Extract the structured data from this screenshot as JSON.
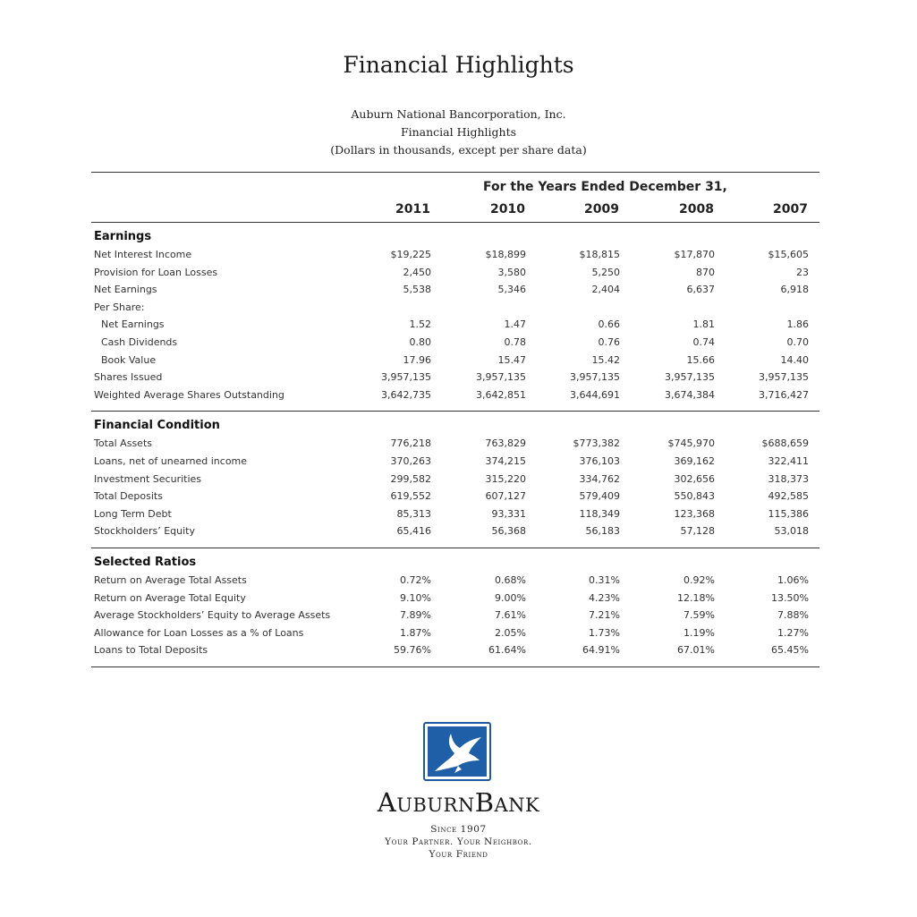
{
  "title": "Financial Highlights",
  "subheader": {
    "company": "Auburn National Bancorporation, Inc.",
    "report": "Financial Highlights",
    "units": "(Dollars in thousands, except per share data)"
  },
  "table": {
    "period_heading": "For the Years Ended December 31,",
    "years": [
      "2011",
      "2010",
      "2009",
      "2008",
      "2007"
    ],
    "sections": [
      {
        "title": "Earnings",
        "rows": [
          {
            "label": "Net Interest Income",
            "values": [
              "$19,225",
              "$18,899",
              "$18,815",
              "$17,870",
              "$15,605"
            ]
          },
          {
            "label": "Provision for Loan Losses",
            "values": [
              "2,450",
              "3,580",
              "5,250",
              "870",
              "23"
            ]
          },
          {
            "label": "Net Earnings",
            "values": [
              "5,538",
              "5,346",
              "2,404",
              "6,637",
              "6,918"
            ]
          },
          {
            "label": "Per Share:",
            "values": [
              "",
              "",
              "",
              "",
              ""
            ]
          },
          {
            "label": "Net Earnings",
            "values": [
              "1.52",
              "1.47",
              "0.66",
              "1.81",
              "1.86"
            ]
          },
          {
            "label": "Cash Dividends",
            "values": [
              "0.80",
              "0.78",
              "0.76",
              "0.74",
              "0.70"
            ]
          },
          {
            "label": "Book Value",
            "values": [
              "17.96",
              "15.47",
              "15.42",
              "15.66",
              "14.40"
            ]
          },
          {
            "label": "Shares Issued",
            "values": [
              "3,957,135",
              "3,957,135",
              "3,957,135",
              "3,957,135",
              "3,957,135"
            ]
          },
          {
            "label": "Weighted Average Shares Outstanding",
            "values": [
              "3,642,735",
              "3,642,851",
              "3,644,691",
              "3,674,384",
              "3,716,427"
            ]
          }
        ]
      },
      {
        "title": "Financial Condition",
        "rows": [
          {
            "label": "Total Assets",
            "values": [
              "776,218",
              "763,829",
              "$773,382",
              "$745,970",
              "$688,659"
            ]
          },
          {
            "label": "Loans, net of unearned income",
            "values": [
              "370,263",
              "374,215",
              "376,103",
              "369,162",
              "322,411"
            ]
          },
          {
            "label": "Investment Securities",
            "values": [
              "299,582",
              "315,220",
              "334,762",
              "302,656",
              "318,373"
            ]
          },
          {
            "label": "Total Deposits",
            "values": [
              "619,552",
              "607,127",
              "579,409",
              "550,843",
              "492,585"
            ]
          },
          {
            "label": "Long Term Debt",
            "values": [
              "85,313",
              "93,331",
              "118,349",
              "123,368",
              "115,386"
            ]
          },
          {
            "label": "Stockholders’ Equity",
            "values": [
              "65,416",
              "56,368",
              "56,183",
              "57,128",
              "53,018"
            ]
          }
        ]
      },
      {
        "title": "Selected Ratios",
        "rows": [
          {
            "label": "Return on Average Total Assets",
            "values": [
              "0.72%",
              "0.68%",
              "0.31%",
              "0.92%",
              "1.06%"
            ]
          },
          {
            "label": "Return on Average Total Equity",
            "values": [
              "9.10%",
              "9.00%",
              "4.23%",
              "12.18%",
              "13.50%"
            ]
          },
          {
            "label": "Average Stockholders’ Equity to Average Assets",
            "values": [
              "7.89%",
              "7.61%",
              "7.21%",
              "7.59%",
              "7.88%"
            ]
          },
          {
            "label": "Allowance for Loan Losses as a % of Loans",
            "values": [
              "1.87%",
              "2.05%",
              "1.73%",
              "1.19%",
              "1.27%"
            ]
          },
          {
            "label": "Loans to Total Deposits",
            "values": [
              "59.76%",
              "61.64%",
              "64.91%",
              "67.01%",
              "65.45%"
            ]
          }
        ]
      }
    ]
  },
  "branding": {
    "logo_icon": "eagle-logo-icon",
    "logo_color": "#1f5fa8",
    "brand_first": "A",
    "brand_first_rest": "UBURN",
    "brand_second": "B",
    "brand_second_rest": "ANK",
    "tagline_1": "Since 1907",
    "tagline_2": "Your Partner. Your Neighbor.",
    "tagline_3": "Your Friend"
  }
}
